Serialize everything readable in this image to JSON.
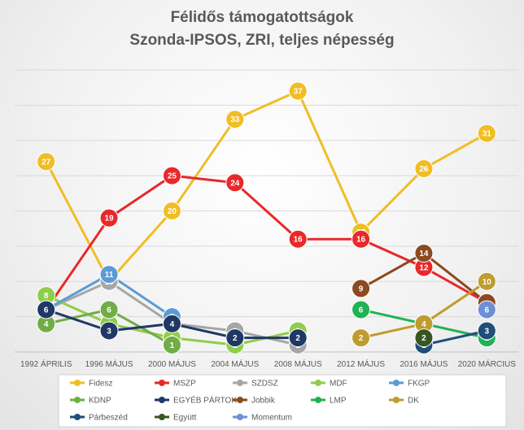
{
  "chart_data": {
    "type": "line",
    "title": "Félidős támogatottságok",
    "subtitle": "Szonda-IPSOS, ZRI, teljes népesség",
    "categories": [
      "1992 ÁPRILIS",
      "1996 MÁJUS",
      "2000 MÁJUS",
      "2004 MÁJUS",
      "2008 MÁJUS",
      "2012 MÁJUS",
      "2016 MÁJUS",
      "2020 MÁRCIUS"
    ],
    "ylim": [
      0,
      40
    ],
    "grid": true,
    "legend": "bottom",
    "series": [
      {
        "name": "Fidesz",
        "color": "#f0be24",
        "values": [
          27,
          10,
          20,
          33,
          37,
          17,
          26,
          31
        ],
        "labels": [
          "27",
          "10",
          "20",
          "33",
          "37",
          "17",
          "26",
          "31"
        ]
      },
      {
        "name": "MSZP",
        "color": "#e8282a",
        "values": [
          6,
          19,
          25,
          24,
          16,
          16,
          12,
          7
        ],
        "labels": [
          "6",
          "19",
          "25",
          "24",
          "16",
          "16",
          "12",
          "7"
        ]
      },
      {
        "name": "SZDSZ",
        "color": "#a6a6a6",
        "values": [
          6,
          10,
          4,
          3,
          1,
          null,
          null,
          null
        ],
        "labels": [
          "6",
          "10",
          "4",
          "3",
          "1",
          "",
          "",
          ""
        ]
      },
      {
        "name": "MDF",
        "color": "#8fcd4a",
        "values": [
          8,
          4,
          2,
          1,
          3,
          null,
          null,
          null
        ],
        "labels": [
          "8",
          "4",
          "2",
          "1",
          "3",
          "",
          "",
          ""
        ]
      },
      {
        "name": "FKGP",
        "color": "#5b9bd5",
        "values": [
          6,
          11,
          5,
          null,
          null,
          null,
          null,
          null
        ],
        "labels": [
          "6",
          "11",
          "5",
          "",
          "",
          "",
          "",
          ""
        ]
      },
      {
        "name": "KDNP",
        "color": "#70ad47",
        "values": [
          4,
          6,
          1,
          null,
          null,
          null,
          null,
          null
        ],
        "labels": [
          "4",
          "6",
          "1",
          "",
          "",
          "",
          "",
          ""
        ]
      },
      {
        "name": "EGYÉB PÁRTOK",
        "color": "#203864",
        "values": [
          6,
          3,
          4,
          2,
          2,
          null,
          null,
          null
        ],
        "labels": [
          "6",
          "3",
          "4",
          "2",
          "2",
          "",
          "",
          ""
        ]
      },
      {
        "name": "Jobbik",
        "color": "#8b4a1f",
        "values": [
          null,
          null,
          null,
          null,
          null,
          9,
          14,
          7
        ],
        "labels": [
          "",
          "",
          "",
          "",
          "",
          "9",
          "14",
          ""
        ]
      },
      {
        "name": "LMP",
        "color": "#21b253",
        "values": [
          null,
          null,
          null,
          null,
          null,
          6,
          4,
          2
        ],
        "labels": [
          "",
          "",
          "",
          "",
          "",
          "6",
          "",
          "2"
        ]
      },
      {
        "name": "DK",
        "color": "#bf9b30",
        "values": [
          null,
          null,
          null,
          null,
          null,
          2,
          4,
          10
        ],
        "labels": [
          "",
          "",
          "",
          "",
          "",
          "2",
          "4",
          "10"
        ]
      },
      {
        "name": "Párbeszéd",
        "color": "#1f4e79",
        "values": [
          null,
          null,
          null,
          null,
          null,
          null,
          1,
          3
        ],
        "labels": [
          "",
          "",
          "",
          "",
          "",
          "",
          "1",
          "3"
        ]
      },
      {
        "name": "Együtt",
        "color": "#375623",
        "values": [
          null,
          null,
          null,
          null,
          null,
          null,
          2,
          null
        ],
        "labels": [
          "",
          "",
          "",
          "",
          "",
          "",
          "2",
          ""
        ]
      },
      {
        "name": "Momentum",
        "color": "#6d8fd6",
        "values": [
          null,
          null,
          null,
          null,
          null,
          null,
          null,
          6
        ],
        "labels": [
          "",
          "",
          "",
          "",
          "",
          "",
          "",
          "6"
        ]
      }
    ]
  }
}
